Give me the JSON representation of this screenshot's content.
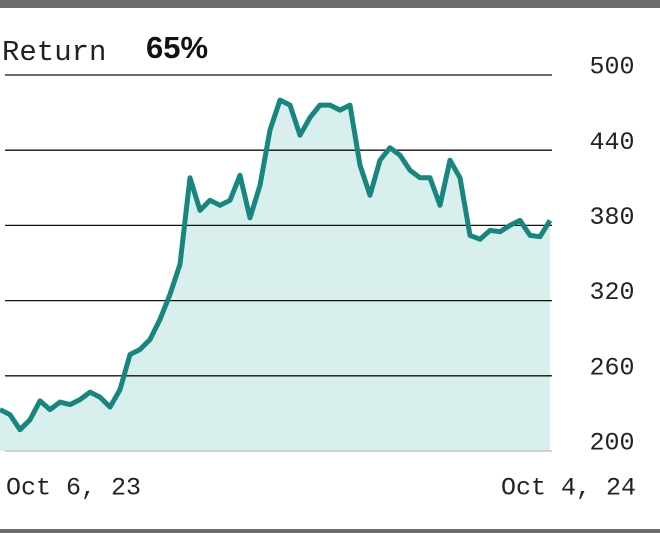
{
  "chart_data": {
    "type": "area",
    "title": "Return",
    "subtitle": "65%",
    "categories": [
      "Oct 6, 23",
      null,
      null,
      null,
      null,
      null,
      null,
      null,
      null,
      null,
      null,
      null,
      null,
      null,
      null,
      null,
      null,
      null,
      null,
      null,
      null,
      null,
      null,
      null,
      null,
      null,
      null,
      null,
      null,
      null,
      null,
      null,
      null,
      null,
      null,
      null,
      null,
      null,
      null,
      null,
      null,
      null,
      null,
      null,
      null,
      null,
      null,
      null,
      null,
      null,
      null,
      null,
      null,
      null,
      null,
      "Oct 4, 24"
    ],
    "values": [
      233,
      229,
      217,
      225,
      240,
      233,
      239,
      237,
      241,
      247,
      243,
      235,
      249,
      277,
      281,
      289,
      305,
      325,
      349,
      418,
      392,
      400,
      396,
      400,
      420,
      386,
      412,
      456,
      480,
      476,
      452,
      466,
      476,
      476,
      472,
      476,
      428,
      404,
      432,
      442,
      436,
      424,
      418,
      418,
      396,
      432,
      418,
      372,
      369,
      376,
      375,
      380,
      384,
      372,
      371,
      384
    ],
    "color": "#17867f",
    "fill": "#d9efed",
    "ylim": [
      200,
      500
    ],
    "yticks": [
      200,
      260,
      320,
      380,
      440,
      500
    ],
    "grid": true
  }
}
